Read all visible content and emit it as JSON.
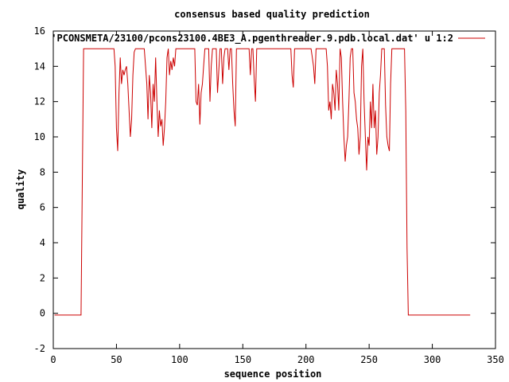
{
  "chart_data": {
    "type": "line",
    "title": "consensus based quality prediction",
    "xlabel": "sequence position",
    "ylabel": "quality",
    "xlim": [
      0,
      350
    ],
    "ylim": [
      -2,
      16
    ],
    "xticks": [
      0,
      50,
      100,
      150,
      200,
      250,
      300,
      350
    ],
    "yticks": [
      -2,
      0,
      2,
      4,
      6,
      8,
      10,
      12,
      14,
      16
    ],
    "grid": false,
    "legend_position": "top-right",
    "series": [
      {
        "name": "'PCONSMETA/23100/pcons23100.4BE3_A.pgenthreader.9.pdb.local.dat' u 1:2",
        "color": "#cc0000",
        "x": [
          1,
          22,
          23,
          24,
          48,
          49,
          50,
          51,
          52,
          53,
          54,
          55,
          56,
          57,
          58,
          59,
          60,
          61,
          62,
          63,
          64,
          65,
          66,
          72,
          73,
          74,
          75,
          76,
          77,
          78,
          79,
          80,
          81,
          82,
          83,
          84,
          85,
          86,
          87,
          88,
          89,
          90,
          91,
          92,
          93,
          94,
          95,
          96,
          97,
          98,
          99,
          100,
          112,
          113,
          114,
          115,
          116,
          117,
          118,
          119,
          120,
          121,
          122,
          123,
          124,
          125,
          126,
          128,
          129,
          130,
          132,
          133,
          134,
          135,
          136,
          137,
          138,
          139,
          140,
          141,
          142,
          143,
          144,
          145,
          155,
          156,
          157,
          158,
          159,
          160,
          161,
          162,
          163,
          185,
          186,
          187,
          188,
          189,
          190,
          191,
          192,
          203,
          204,
          205,
          206,
          207,
          208,
          214,
          215,
          216,
          217,
          218,
          219,
          220,
          221,
          222,
          223,
          224,
          225,
          226,
          227,
          228,
          229,
          230,
          231,
          232,
          233,
          234,
          235,
          236,
          237,
          238,
          239,
          240,
          241,
          242,
          243,
          244,
          245,
          246,
          247,
          248,
          249,
          250,
          251,
          252,
          253,
          254,
          255,
          256,
          257,
          258,
          259,
          260,
          261,
          262,
          263,
          264,
          265,
          266,
          267,
          268,
          269,
          278,
          279,
          280,
          281,
          330
        ],
        "y": [
          -0.1,
          -0.1,
          7.5,
          15,
          15,
          14,
          10.5,
          9.2,
          12.5,
          14.5,
          13,
          13.8,
          13.5,
          13.8,
          14,
          13,
          11.5,
          10,
          11,
          13.5,
          14.8,
          15,
          15,
          15,
          14,
          13,
          11,
          13.5,
          12.5,
          10.5,
          13,
          12,
          14.5,
          12,
          10,
          11.5,
          10.6,
          11,
          9.5,
          10.5,
          12,
          14.5,
          15,
          13.5,
          14.3,
          13.8,
          14.5,
          14,
          15,
          15,
          15,
          15,
          15,
          12,
          11.8,
          13,
          10.7,
          12.5,
          13,
          14,
          15,
          15,
          15,
          15,
          12,
          14,
          15,
          15,
          15,
          12.5,
          15,
          15,
          13,
          14.5,
          15,
          15,
          15,
          13.8,
          15,
          15,
          13,
          11.5,
          10.6,
          15,
          15,
          13.5,
          15,
          15,
          13.3,
          12,
          15,
          15,
          15,
          15,
          15,
          15,
          15,
          13.5,
          12.8,
          15,
          15,
          15,
          15,
          14.5,
          14,
          13,
          15,
          15,
          15,
          15,
          14,
          11.5,
          12,
          11,
          13,
          12.5,
          11.5,
          13.8,
          13,
          11.5,
          15,
          14.5,
          12,
          10,
          8.6,
          9.5,
          10,
          12,
          14.5,
          15,
          15,
          12.5,
          12,
          11,
          10.5,
          9,
          10,
          14,
          15,
          12,
          10,
          8.1,
          10,
          9.5,
          12,
          10.5,
          13,
          10.5,
          11.5,
          9,
          10,
          12.5,
          13.5,
          15,
          15,
          15,
          11.8,
          10,
          9.5,
          9.2,
          13,
          15,
          15,
          15,
          11.5,
          3.7,
          -0.1,
          -0.1
        ]
      }
    ]
  }
}
